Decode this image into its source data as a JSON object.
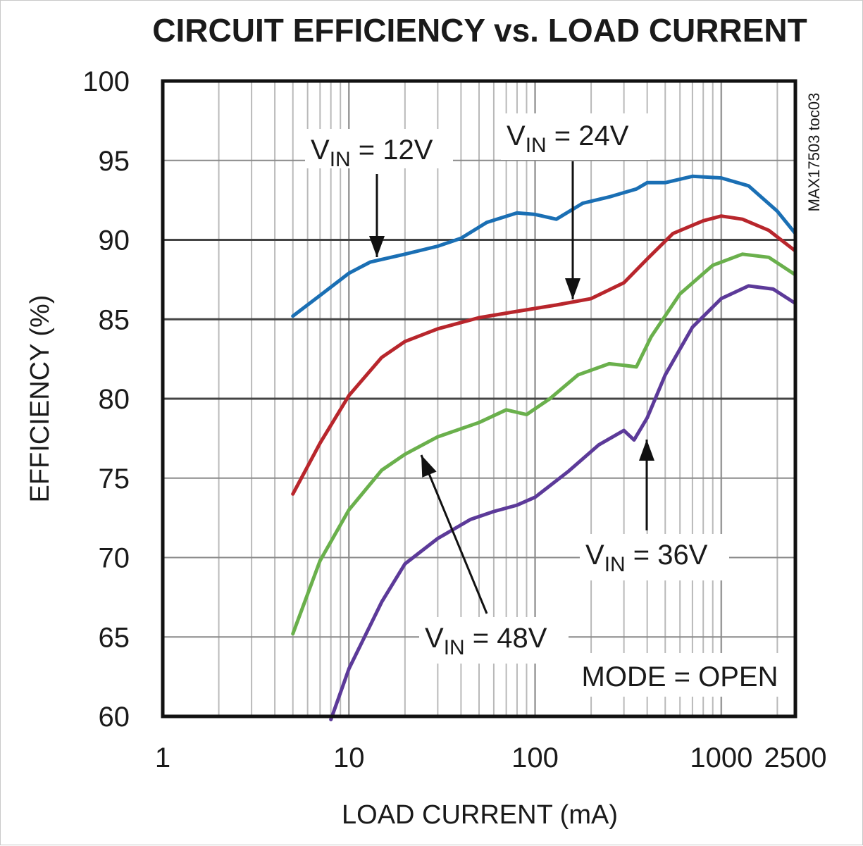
{
  "chart_data": {
    "type": "line",
    "title": "CIRCUIT EFFICIENCY vs. LOAD CURRENT",
    "xlabel": "LOAD CURRENT (mA)",
    "ylabel": "EFFICIENCY (%)",
    "x_scale": "log",
    "xlim": [
      1,
      2500
    ],
    "ylim": [
      60,
      100
    ],
    "x_ticks": [
      "1",
      "10",
      "100",
      "1000",
      "2500"
    ],
    "y_ticks": [
      "100",
      "95",
      "90",
      "85",
      "80",
      "75",
      "70",
      "65",
      "60"
    ],
    "grid": true,
    "side_label": "MAX17503 toc03",
    "mode_note": "MODE = OPEN",
    "series": [
      {
        "name": "VIN = 12V",
        "label_main": "V",
        "label_sub": "IN",
        "label_rest": " = 12V",
        "color": "#1a6fb4",
        "points": [
          [
            5,
            85.2
          ],
          [
            7,
            86.5
          ],
          [
            10,
            87.9
          ],
          [
            13,
            88.6
          ],
          [
            20,
            89.1
          ],
          [
            30,
            89.6
          ],
          [
            40,
            90.1
          ],
          [
            55,
            91.1
          ],
          [
            80,
            91.7
          ],
          [
            100,
            91.6
          ],
          [
            130,
            91.3
          ],
          [
            180,
            92.3
          ],
          [
            250,
            92.7
          ],
          [
            350,
            93.2
          ],
          [
            400,
            93.6
          ],
          [
            500,
            93.6
          ],
          [
            700,
            94.0
          ],
          [
            1000,
            93.9
          ],
          [
            1400,
            93.4
          ],
          [
            2000,
            91.8
          ],
          [
            2500,
            90.4
          ]
        ]
      },
      {
        "name": "VIN = 24V",
        "label_main": "V",
        "label_sub": "IN",
        "label_rest": " = 24V",
        "color": "#b8262c",
        "points": [
          [
            5,
            74.0
          ],
          [
            7,
            77.2
          ],
          [
            10,
            80.2
          ],
          [
            15,
            82.6
          ],
          [
            20,
            83.6
          ],
          [
            30,
            84.4
          ],
          [
            50,
            85.1
          ],
          [
            80,
            85.5
          ],
          [
            130,
            85.9
          ],
          [
            200,
            86.3
          ],
          [
            300,
            87.3
          ],
          [
            400,
            88.8
          ],
          [
            550,
            90.4
          ],
          [
            800,
            91.2
          ],
          [
            1000,
            91.5
          ],
          [
            1300,
            91.3
          ],
          [
            1800,
            90.6
          ],
          [
            2500,
            89.3
          ]
        ]
      },
      {
        "name": "VIN = 36V",
        "label_main": "V",
        "label_sub": "IN",
        "label_rest": " = 36V",
        "color": "#6ab04c",
        "points": [
          [
            5,
            65.2
          ],
          [
            7,
            69.8
          ],
          [
            10,
            73.0
          ],
          [
            15,
            75.5
          ],
          [
            20,
            76.5
          ],
          [
            30,
            77.6
          ],
          [
            50,
            78.5
          ],
          [
            70,
            79.3
          ],
          [
            90,
            79.0
          ],
          [
            120,
            80.0
          ],
          [
            170,
            81.5
          ],
          [
            250,
            82.2
          ],
          [
            300,
            82.1
          ],
          [
            350,
            82.0
          ],
          [
            420,
            83.9
          ],
          [
            600,
            86.6
          ],
          [
            900,
            88.4
          ],
          [
            1300,
            89.1
          ],
          [
            1800,
            88.9
          ],
          [
            2500,
            87.8
          ]
        ]
      },
      {
        "name": "VIN = 48V",
        "label_main": "V",
        "label_sub": "IN",
        "label_rest": " = 48V",
        "color": "#5c3a99",
        "points": [
          [
            8,
            59.8
          ],
          [
            10,
            63.0
          ],
          [
            15,
            67.2
          ],
          [
            20,
            69.6
          ],
          [
            30,
            71.2
          ],
          [
            45,
            72.4
          ],
          [
            60,
            72.9
          ],
          [
            80,
            73.3
          ],
          [
            100,
            73.8
          ],
          [
            150,
            75.4
          ],
          [
            220,
            77.1
          ],
          [
            300,
            78.0
          ],
          [
            340,
            77.4
          ],
          [
            400,
            78.8
          ],
          [
            500,
            81.5
          ],
          [
            700,
            84.5
          ],
          [
            1000,
            86.3
          ],
          [
            1400,
            87.1
          ],
          [
            1900,
            86.9
          ],
          [
            2500,
            86.0
          ]
        ]
      }
    ]
  }
}
